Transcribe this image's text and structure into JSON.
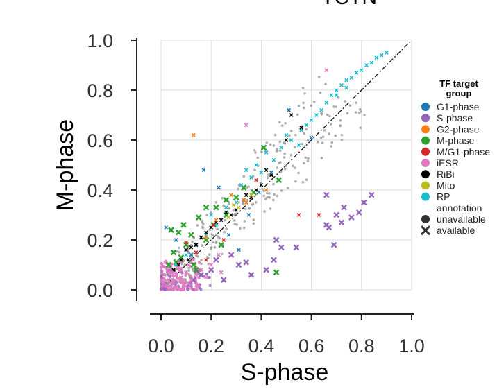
{
  "title": "TCTN",
  "chart_data": {
    "type": "scatter",
    "xlabel": "S-phase",
    "ylabel": "M-phase",
    "xlim": [
      0.0,
      1.0
    ],
    "ylim": [
      0.0,
      1.0
    ],
    "xticks": [
      "0.0",
      "0.2",
      "0.4",
      "0.6",
      "0.8",
      "1.0"
    ],
    "yticks": [
      "0.0",
      "0.2",
      "0.4",
      "0.6",
      "0.8",
      "1.0"
    ],
    "grid": true,
    "diagonal_line": "dash-dot y = x",
    "legend": {
      "placement": "right",
      "color_title_lines": [
        "TF target",
        "group"
      ],
      "groups": [
        {
          "label": "G1-phase",
          "color": "#1f77b4"
        },
        {
          "label": "S-phase",
          "color": "#9467bd"
        },
        {
          "label": "G2-phase",
          "color": "#ff7f0e"
        },
        {
          "label": "M-phase",
          "color": "#2ca02c"
        },
        {
          "label": "M/G1-phase",
          "color": "#d62728"
        },
        {
          "label": "iESR",
          "color": "#e377c2"
        },
        {
          "label": "RiBi",
          "color": "#000000"
        },
        {
          "label": "Mito",
          "color": "#bcbd22"
        },
        {
          "label": "RP",
          "color": "#17becf"
        }
      ],
      "marker_title": "annotation",
      "markers": [
        {
          "label": "unavailable",
          "shape": "circle"
        },
        {
          "label": "available",
          "shape": "x"
        }
      ]
    },
    "background_color": "#999999",
    "series": [
      {
        "name": "S-phase",
        "color": "#9467bd",
        "marker": "x",
        "points": [
          [
            0.66,
            0.38
          ],
          [
            0.7,
            0.3
          ],
          [
            0.73,
            0.33
          ],
          [
            0.76,
            0.29
          ],
          [
            0.79,
            0.31
          ],
          [
            0.81,
            0.35
          ],
          [
            0.84,
            0.38
          ],
          [
            0.72,
            0.27
          ],
          [
            0.67,
            0.25
          ],
          [
            0.69,
            0.18
          ],
          [
            0.48,
            0.17
          ],
          [
            0.54,
            0.17
          ],
          [
            0.46,
            0.2
          ],
          [
            0.66,
            0.26
          ],
          [
            0.31,
            0.1
          ],
          [
            0.36,
            0.06
          ],
          [
            0.42,
            0.08
          ],
          [
            0.45,
            0.12
          ],
          [
            0.25,
            0.04
          ],
          [
            0.2,
            0.08
          ],
          [
            0.16,
            0.06
          ],
          [
            0.28,
            0.14
          ],
          [
            0.34,
            0.11
          ],
          [
            0.22,
            0.12
          ],
          [
            0.13,
            0.04
          ]
        ]
      },
      {
        "name": "M-phase",
        "color": "#2ca02c",
        "marker": "x",
        "points": [
          [
            0.04,
            0.24
          ],
          [
            0.07,
            0.23
          ],
          [
            0.09,
            0.26
          ],
          [
            0.12,
            0.22
          ],
          [
            0.15,
            0.29
          ],
          [
            0.18,
            0.33
          ],
          [
            0.22,
            0.33
          ],
          [
            0.26,
            0.36
          ],
          [
            0.3,
            0.37
          ],
          [
            0.33,
            0.41
          ],
          [
            0.41,
            0.57
          ],
          [
            0.47,
            0.44
          ],
          [
            0.05,
            0.15
          ],
          [
            0.08,
            0.13
          ],
          [
            0.1,
            0.18
          ],
          [
            0.13,
            0.1
          ],
          [
            0.18,
            0.2
          ],
          [
            0.21,
            0.26
          ],
          [
            0.46,
            0.07
          ],
          [
            0.26,
            0.3
          ],
          [
            0.14,
            0.08
          ],
          [
            0.06,
            0.11
          ],
          [
            0.03,
            0.1
          ],
          [
            0.24,
            0.18
          ],
          [
            0.37,
            0.39
          ]
        ]
      },
      {
        "name": "RP",
        "color": "#17becf",
        "marker": "x",
        "points": [
          [
            0.62,
            0.7
          ],
          [
            0.66,
            0.75
          ],
          [
            0.7,
            0.8
          ],
          [
            0.74,
            0.84
          ],
          [
            0.78,
            0.87
          ],
          [
            0.82,
            0.9
          ],
          [
            0.86,
            0.93
          ],
          [
            0.9,
            0.95
          ],
          [
            0.88,
            0.94
          ],
          [
            0.84,
            0.91
          ],
          [
            0.8,
            0.88
          ],
          [
            0.76,
            0.85
          ],
          [
            0.72,
            0.82
          ],
          [
            0.68,
            0.78
          ],
          [
            0.64,
            0.72
          ],
          [
            0.6,
            0.68
          ],
          [
            0.56,
            0.64
          ],
          [
            0.52,
            0.6
          ],
          [
            0.48,
            0.57
          ],
          [
            0.45,
            0.52
          ],
          [
            0.4,
            0.47
          ],
          [
            0.36,
            0.45
          ],
          [
            0.32,
            0.42
          ],
          [
            0.28,
            0.38
          ],
          [
            0.34,
            0.48
          ],
          [
            0.38,
            0.5
          ],
          [
            0.42,
            0.55
          ],
          [
            0.5,
            0.62
          ],
          [
            0.55,
            0.58
          ],
          [
            0.58,
            0.66
          ],
          [
            0.7,
            0.78
          ],
          [
            0.74,
            0.81
          ],
          [
            0.18,
            0.22
          ],
          [
            0.22,
            0.26
          ],
          [
            0.26,
            0.33
          ],
          [
            0.3,
            0.35
          ],
          [
            0.14,
            0.18
          ],
          [
            0.1,
            0.14
          ],
          [
            0.06,
            0.1
          ],
          [
            0.2,
            0.3
          ]
        ]
      },
      {
        "name": "RiBi",
        "color": "#000000",
        "marker": "x",
        "points": [
          [
            0.3,
            0.32
          ],
          [
            0.28,
            0.3
          ],
          [
            0.24,
            0.28
          ],
          [
            0.2,
            0.25
          ],
          [
            0.16,
            0.21
          ],
          [
            0.12,
            0.17
          ],
          [
            0.08,
            0.12
          ],
          [
            0.05,
            0.08
          ],
          [
            0.33,
            0.36
          ],
          [
            0.36,
            0.37
          ],
          [
            0.4,
            0.42
          ],
          [
            0.44,
            0.46
          ],
          [
            0.5,
            0.6
          ],
          [
            0.52,
            0.7
          ],
          [
            0.56,
            0.65
          ],
          [
            0.34,
            0.38
          ],
          [
            0.18,
            0.23
          ],
          [
            0.22,
            0.27
          ],
          [
            0.14,
            0.18
          ],
          [
            0.1,
            0.16
          ],
          [
            0.26,
            0.31
          ],
          [
            0.38,
            0.4
          ],
          [
            0.42,
            0.48
          ],
          [
            0.11,
            0.12
          ],
          [
            0.07,
            0.1
          ]
        ]
      },
      {
        "name": "iESR",
        "color": "#e377c2",
        "marker": "x",
        "points": [
          [
            0.02,
            0.02
          ],
          [
            0.03,
            0.04
          ],
          [
            0.05,
            0.03
          ],
          [
            0.06,
            0.06
          ],
          [
            0.08,
            0.05
          ],
          [
            0.1,
            0.07
          ],
          [
            0.12,
            0.04
          ],
          [
            0.14,
            0.06
          ],
          [
            0.04,
            0.07
          ],
          [
            0.07,
            0.09
          ],
          [
            0.09,
            0.02
          ],
          [
            0.11,
            0.1
          ],
          [
            0.16,
            0.08
          ],
          [
            0.18,
            0.05
          ],
          [
            0.13,
            0.12
          ],
          [
            0.2,
            0.1
          ],
          [
            0.03,
            0.01
          ],
          [
            0.01,
            0.03
          ],
          [
            0.06,
            0.01
          ],
          [
            0.15,
            0.02
          ],
          [
            0.66,
            0.88
          ],
          [
            0.34,
            0.66
          ],
          [
            0.23,
            0.14
          ],
          [
            0.24,
            0.07
          ],
          [
            0.01,
            0.06
          ]
        ]
      },
      {
        "name": "G1-phase",
        "color": "#1f77b4",
        "marker": "x",
        "points": [
          [
            0.02,
            0.25
          ],
          [
            0.06,
            0.2
          ],
          [
            0.17,
            0.48
          ],
          [
            0.23,
            0.41
          ],
          [
            0.31,
            0.16
          ],
          [
            0.35,
            0.3
          ],
          [
            0.44,
            0.47
          ],
          [
            0.51,
            0.72
          ],
          [
            0.6,
            0.61
          ],
          [
            0.39,
            0.39
          ],
          [
            0.12,
            0.14
          ],
          [
            0.27,
            0.22
          ]
        ]
      },
      {
        "name": "G2-phase",
        "color": "#ff7f0e",
        "marker": "x",
        "points": [
          [
            0.13,
            0.62
          ],
          [
            0.28,
            0.38
          ],
          [
            0.33,
            0.36
          ],
          [
            0.34,
            0.35
          ],
          [
            0.22,
            0.28
          ],
          [
            0.18,
            0.21
          ],
          [
            0.42,
            0.4
          ]
        ]
      },
      {
        "name": "M/G1-phase",
        "color": "#d62728",
        "marker": "x",
        "points": [
          [
            0.1,
            0.19
          ],
          [
            0.18,
            0.12
          ],
          [
            0.21,
            0.26
          ],
          [
            0.38,
            0.44
          ],
          [
            0.55,
            0.3
          ],
          [
            0.63,
            0.3
          ],
          [
            0.14,
            0.15
          ],
          [
            0.25,
            0.2
          ]
        ]
      },
      {
        "name": "Mito",
        "color": "#bcbd22",
        "marker": "x",
        "points": [
          [
            0.29,
            0.34
          ],
          [
            0.31,
            0.33
          ],
          [
            0.36,
            0.38
          ],
          [
            0.27,
            0.29
          ]
        ]
      }
    ]
  }
}
